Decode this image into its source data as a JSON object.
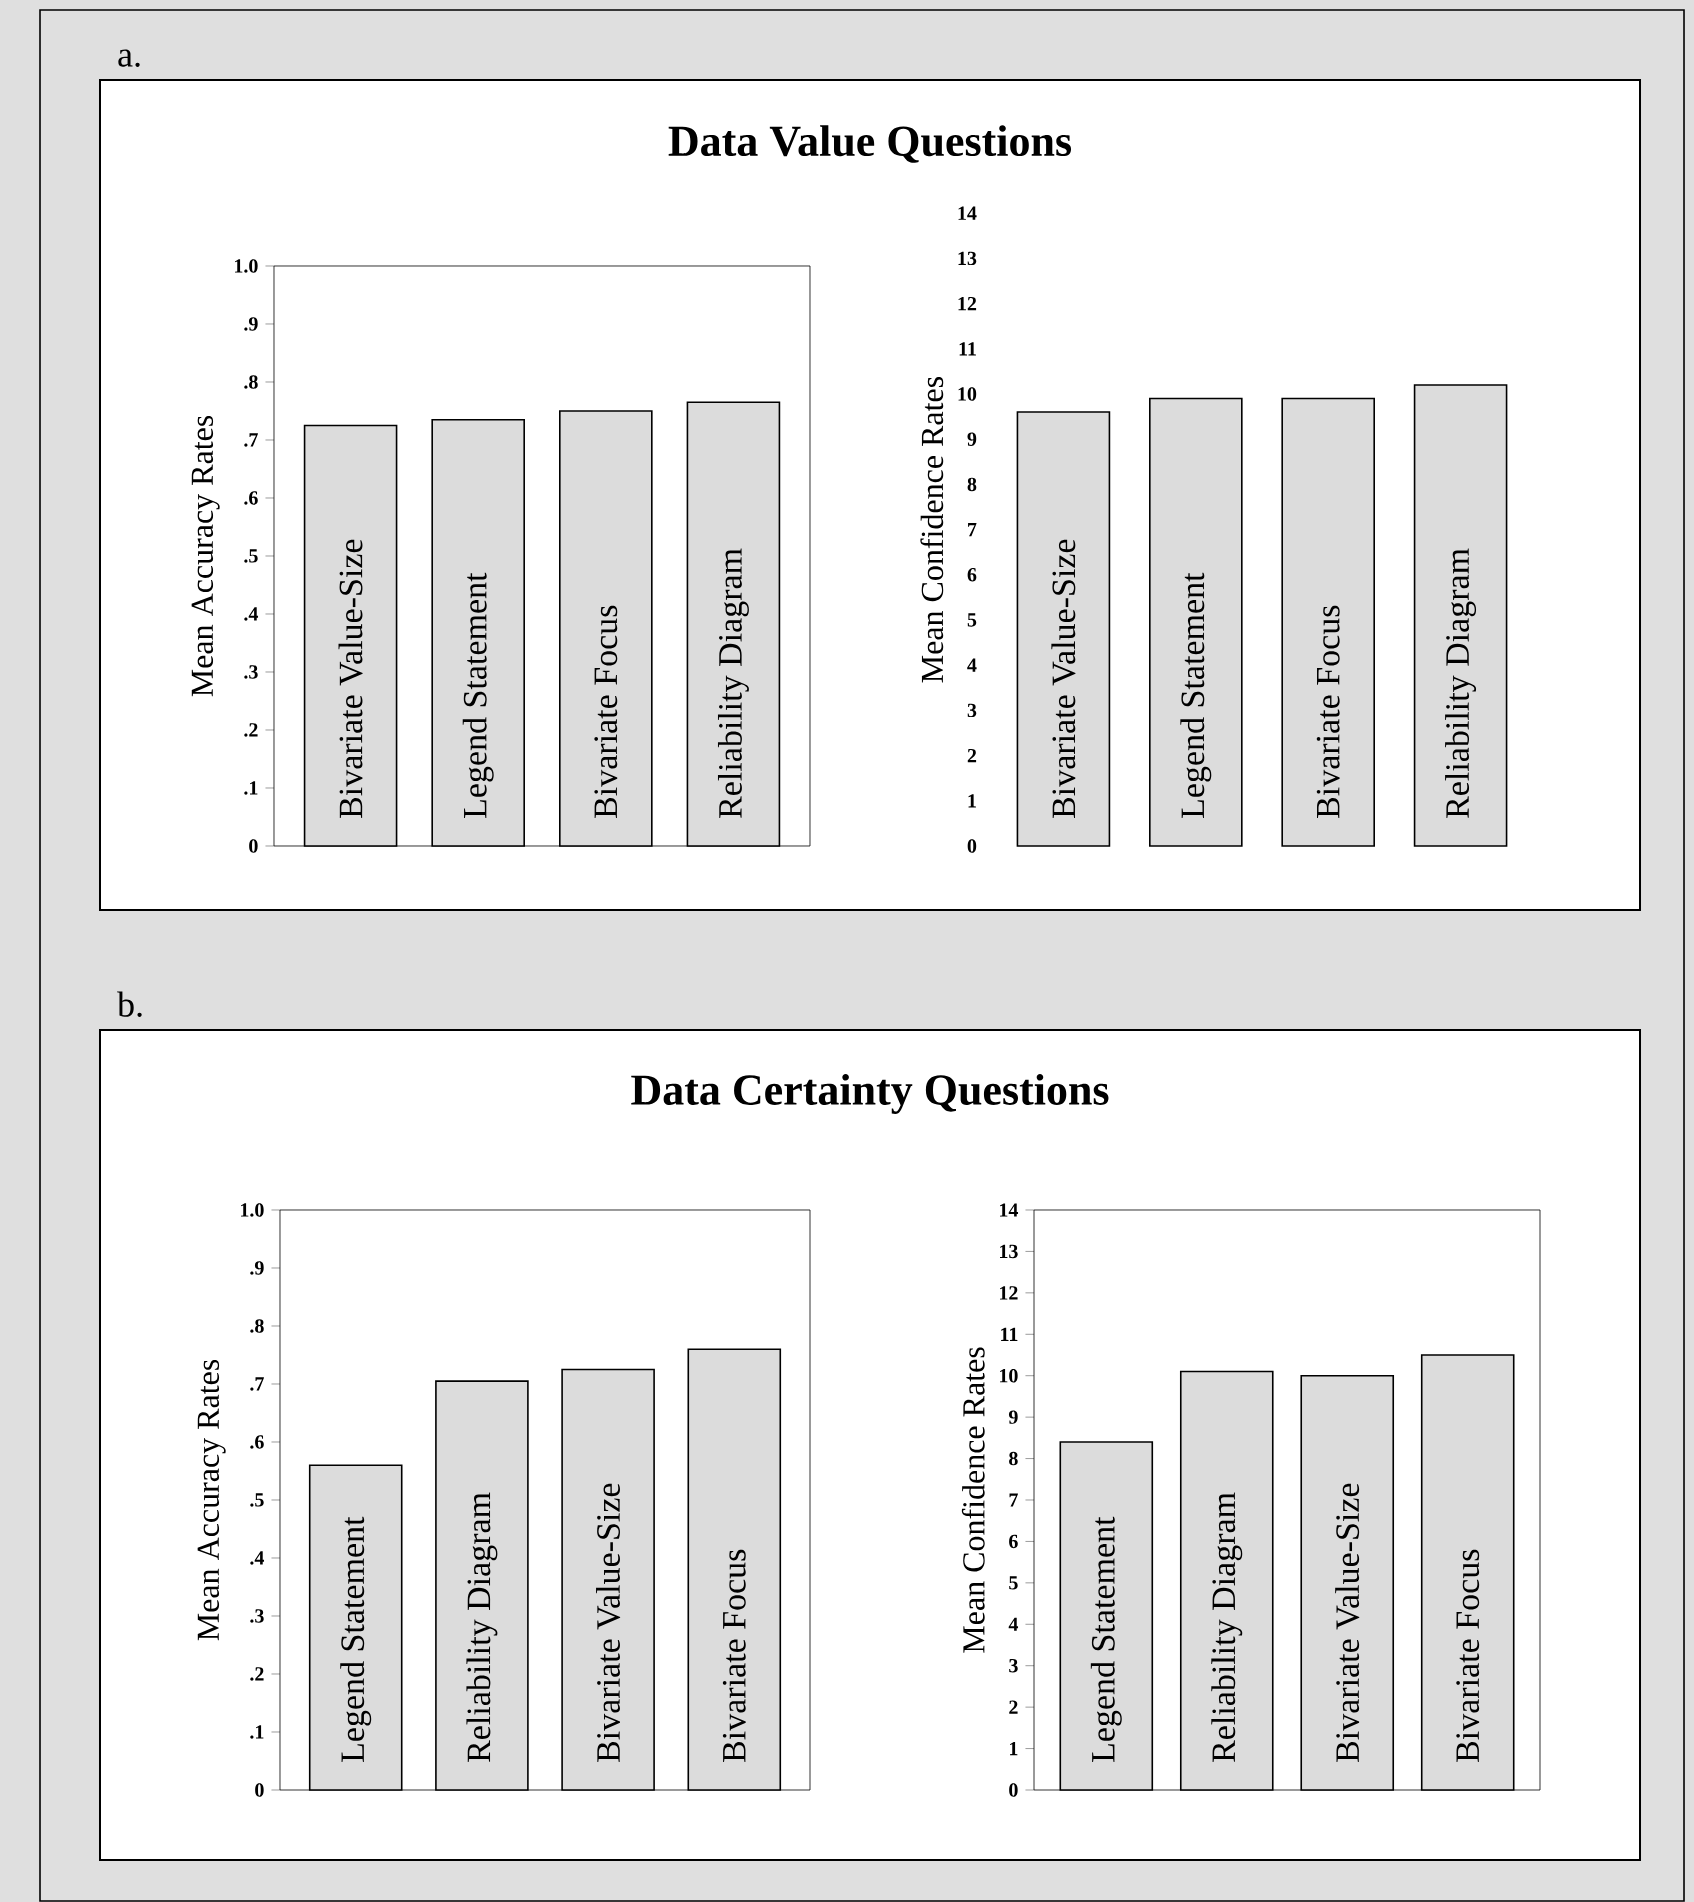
{
  "chart_data": [
    {
      "type": "bar",
      "title": "Data Value Questions",
      "annotations": [
        "a."
      ],
      "categories": [
        "Bivariate Value-Size",
        "Legend Statement",
        "Bivariate Focus",
        "Reliability Diagram"
      ],
      "values": [
        0.725,
        0.735,
        0.75,
        0.765
      ],
      "color": "#dcdcdc",
      "ylabel": "Mean Accuracy Rates",
      "ylim": [
        0,
        1
      ],
      "yticks": [
        0,
        {
          "value": 0.1,
          "label": ".1"
        },
        {
          "value": 0.2,
          "label": ".2"
        },
        {
          "value": 0.3,
          "label": ".3"
        },
        {
          "value": 0.4,
          "label": ".4"
        },
        {
          "value": 0.5,
          "label": ".5"
        },
        {
          "value": 0.6,
          "label": ".6"
        },
        {
          "value": 0.7,
          "label": ".7"
        },
        {
          "value": 0.8,
          "label": ".8"
        },
        {
          "value": 0.9,
          "label": ".9"
        },
        {
          "value": 1,
          "label": "1.0"
        }
      ]
    },
    {
      "type": "bar",
      "categories": [
        "Bivariate Value-Size",
        "Legend Statement",
        "Bivariate Focus",
        "Reliability Diagram"
      ],
      "values": [
        9.6,
        9.9,
        9.9,
        10.2
      ],
      "color": "#dcdcdc",
      "ylabel": "Mean Confidence Rates",
      "ylim": [
        0,
        14
      ],
      "yticks": [
        0,
        1,
        2,
        3,
        4,
        5,
        6,
        7,
        8,
        9,
        10,
        11,
        12,
        13,
        14
      ]
    },
    {
      "type": "bar",
      "title": "Data Certainty Questions",
      "annotations": [
        "b."
      ],
      "categories": [
        "Legend Statement",
        "Reliability Diagram",
        "Bivariate Value-Size",
        "Bivariate Focus"
      ],
      "values": [
        0.56,
        0.705,
        0.725,
        0.76
      ],
      "color": "#dcdcdc",
      "ylabel": "Mean Accuracy Rates",
      "ylim": [
        0,
        1
      ],
      "yticks": [
        0,
        {
          "value": 0.1,
          "label": ".1"
        },
        {
          "value": 0.2,
          "label": ".2"
        },
        {
          "value": 0.3,
          "label": ".3"
        },
        {
          "value": 0.4,
          "label": ".4"
        },
        {
          "value": 0.5,
          "label": ".5"
        },
        {
          "value": 0.6,
          "label": ".6"
        },
        {
          "value": 0.7,
          "label": ".7"
        },
        {
          "value": 0.8,
          "label": ".8"
        },
        {
          "value": 0.9,
          "label": ".9"
        },
        {
          "value": 1,
          "label": "1.0"
        }
      ]
    },
    {
      "type": "bar",
      "categories": [
        "Legend Statement",
        "Reliability Diagram",
        "Bivariate Value-Size",
        "Bivariate Focus"
      ],
      "values": [
        8.4,
        10.1,
        10.0,
        10.5
      ],
      "color": "#dcdcdc",
      "ylabel": "Mean Confidence Rates",
      "ylim": [
        0,
        14
      ],
      "yticks": [
        0,
        1,
        2,
        3,
        4,
        5,
        6,
        7,
        8,
        9,
        10,
        11,
        12,
        13,
        14
      ]
    }
  ]
}
